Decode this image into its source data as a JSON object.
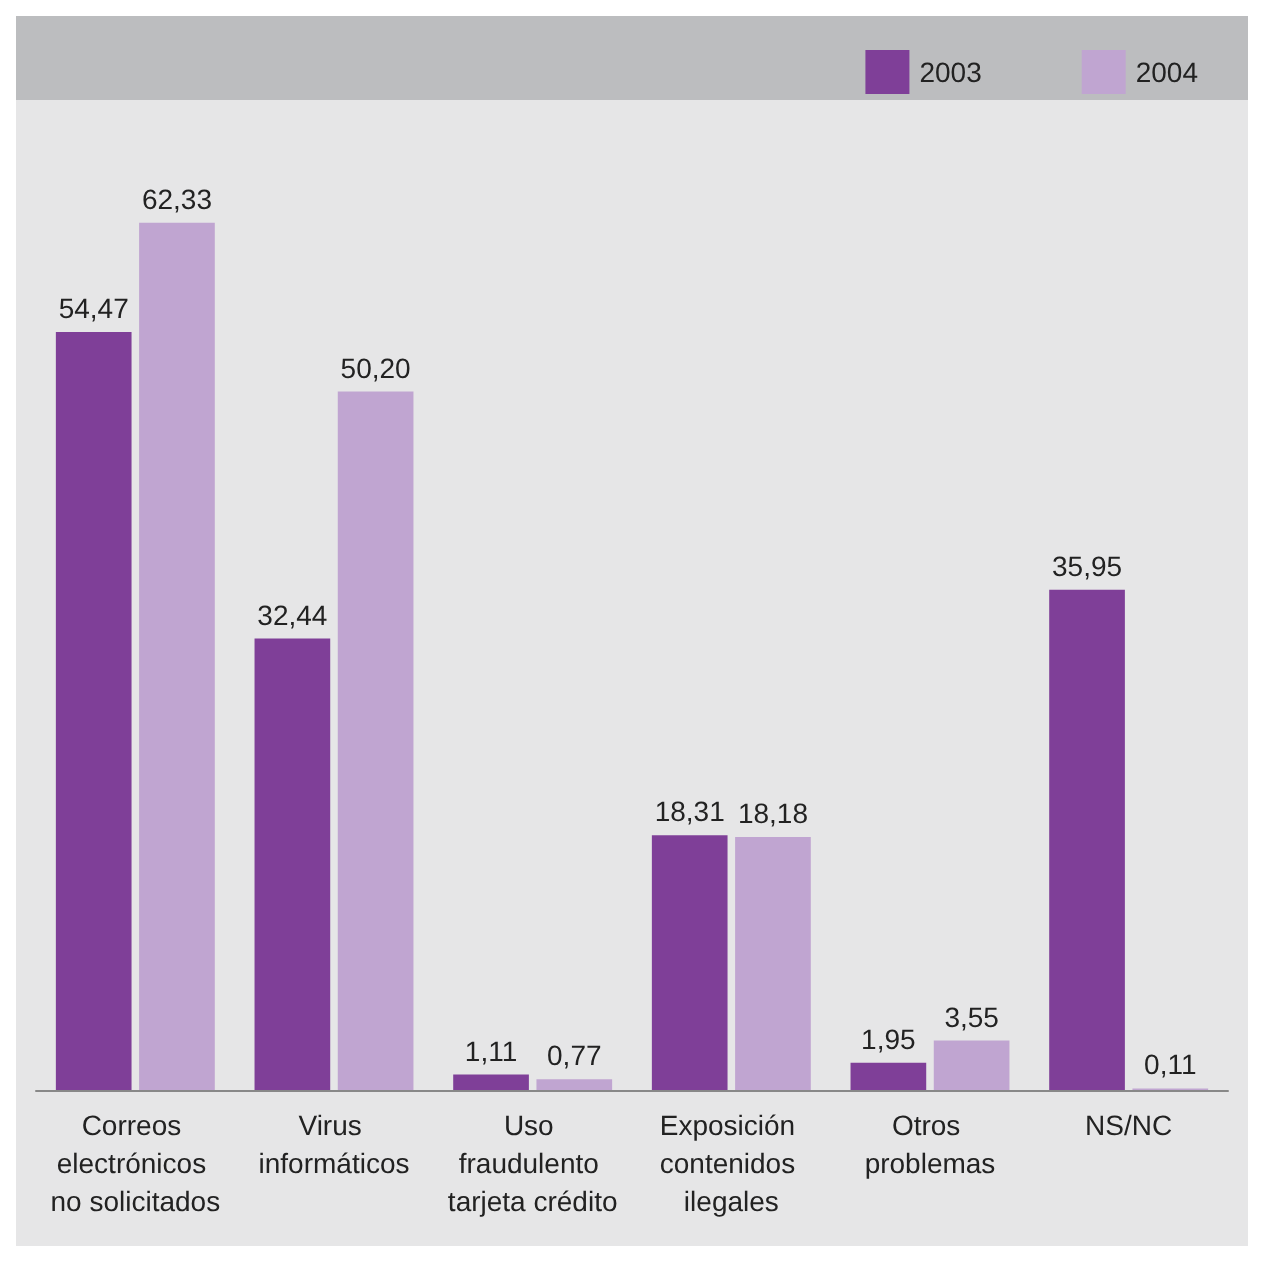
{
  "chart_data": {
    "type": "bar",
    "categories": [
      "Correos electrónicos no solicitados",
      "Virus informáticos",
      "Uso fraudulento tarjeta crédito",
      "Exposición contenidos ilegales",
      "Otros problemas",
      "NS/NC"
    ],
    "series": [
      {
        "name": "2003",
        "color": "#7f3f98",
        "values": [
          54.47,
          32.44,
          1.11,
          18.31,
          1.95,
          35.95
        ],
        "value_labels": [
          "54,47",
          "32,44",
          "1,11",
          "18,31",
          "1,95",
          "35,95"
        ]
      },
      {
        "name": "2004",
        "color": "#c0a5d1",
        "values": [
          62.33,
          50.2,
          0.77,
          18.18,
          3.55,
          0.11
        ],
        "value_labels": [
          "62,33",
          "50,20",
          "0,77",
          "18,18",
          "3,55",
          "0,11"
        ]
      }
    ],
    "legend": "top right"
  }
}
